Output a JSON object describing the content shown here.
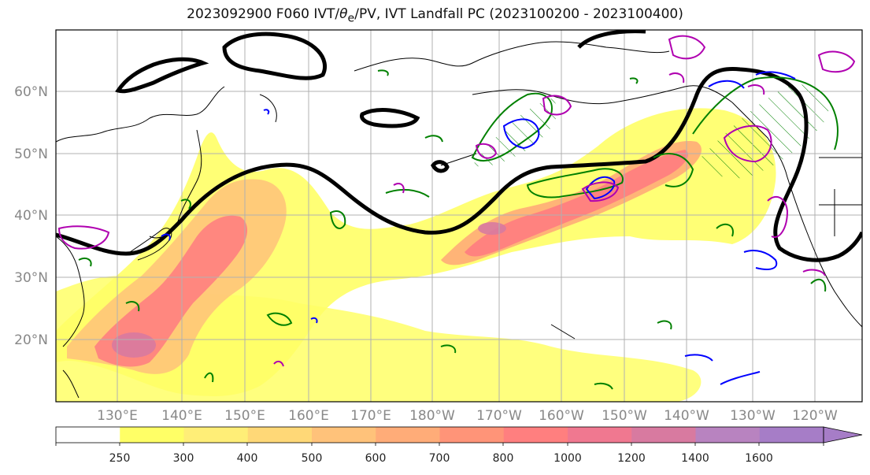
{
  "title": {
    "main": "2023092900 F060 IVT/",
    "theta": "θ",
    "theta_sub": "e",
    "rest": "/PV, IVT Landfall PC (2023100200 - 2023100400)"
  },
  "map": {
    "lat_labels": [
      "60°N",
      "50°N",
      "40°N",
      "30°N",
      "20°N"
    ],
    "lon_labels": [
      "130°E",
      "140°E",
      "150°E",
      "160°E",
      "170°E",
      "180°W",
      "170°W",
      "160°W",
      "150°W",
      "140°W",
      "130°W",
      "120°W"
    ],
    "colors": {
      "jet_contour": "#000000",
      "pv_positive": "#008000",
      "pv_negative": "#0000ff",
      "theta_e": "#b000b0",
      "coastline": "#000000",
      "grid": "#b0b0b0"
    }
  },
  "colorbar": {
    "tick_labels": [
      "250",
      "300",
      "400",
      "500",
      "600",
      "700",
      "800",
      "1000",
      "1200",
      "1400",
      "1600"
    ],
    "colors": [
      "#ffffff",
      "#ffff66",
      "#ffee77",
      "#ffd877",
      "#ffc27a",
      "#ffac78",
      "#ff9478",
      "#ff7f7f",
      "#f07890",
      "#d87aa0",
      "#b883c0",
      "#a67dc7"
    ]
  }
}
